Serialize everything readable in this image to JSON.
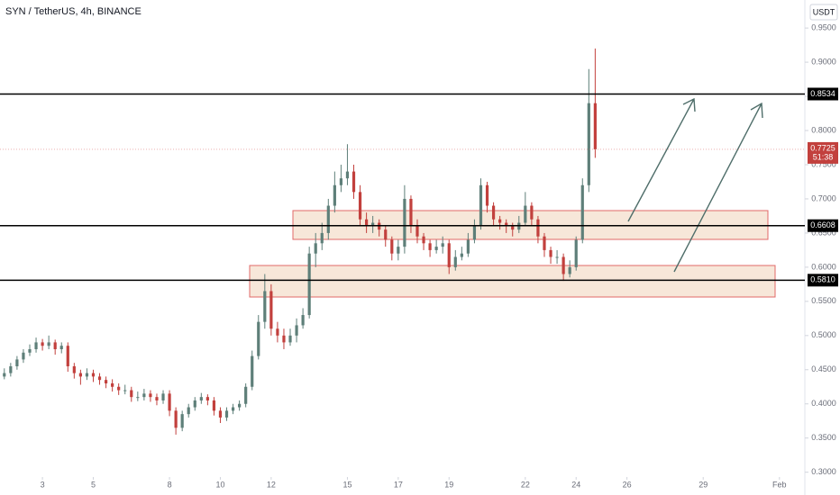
{
  "chart_data": {
    "type": "candlestick",
    "title": "SYN / TetherUS, 4h, BINANCE",
    "currency": "USDT",
    "up_color": "#5e7f79",
    "down_color": "#c2403d",
    "x": [
      1.5,
      1.75,
      2,
      2.25,
      2.5,
      2.75,
      3,
      3.25,
      3.5,
      3.75,
      4,
      4.25,
      4.5,
      4.75,
      5,
      5.25,
      5.5,
      5.75,
      6,
      6.25,
      6.5,
      6.75,
      7,
      7.25,
      7.5,
      7.75,
      8,
      8.25,
      8.5,
      8.75,
      9,
      9.25,
      9.5,
      9.75,
      10,
      10.25,
      10.5,
      10.75,
      11,
      11.25,
      11.5,
      11.75,
      12,
      12.25,
      12.5,
      12.75,
      13,
      13.25,
      13.5,
      13.75,
      14,
      14.25,
      14.5,
      14.75,
      15,
      15.25,
      15.5,
      15.75,
      16,
      16.25,
      16.5,
      16.75,
      17,
      17.25,
      17.5,
      17.75,
      18,
      18.25,
      18.5,
      18.75,
      19,
      19.25,
      19.5,
      19.75,
      20,
      20.25,
      20.5,
      20.75,
      21,
      21.25,
      21.5,
      21.75,
      22,
      22.25,
      22.5,
      22.75,
      23,
      23.25,
      23.5,
      23.75,
      24,
      24.25,
      24.5,
      24.75
    ],
    "candles": [
      [
        0.44,
        0.452,
        0.436,
        0.445
      ],
      [
        0.445,
        0.46,
        0.44,
        0.455
      ],
      [
        0.455,
        0.47,
        0.45,
        0.465
      ],
      [
        0.465,
        0.48,
        0.46,
        0.475
      ],
      [
        0.475,
        0.487,
        0.47,
        0.48
      ],
      [
        0.48,
        0.497,
        0.475,
        0.49
      ],
      [
        0.49,
        0.495,
        0.478,
        0.485
      ],
      [
        0.485,
        0.5,
        0.48,
        0.49
      ],
      [
        0.49,
        0.494,
        0.472,
        0.48
      ],
      [
        0.48,
        0.49,
        0.474,
        0.485
      ],
      [
        0.485,
        0.49,
        0.447,
        0.455
      ],
      [
        0.455,
        0.46,
        0.437,
        0.445
      ],
      [
        0.445,
        0.45,
        0.428,
        0.44
      ],
      [
        0.44,
        0.452,
        0.435,
        0.445
      ],
      [
        0.445,
        0.45,
        0.432,
        0.44
      ],
      [
        0.44,
        0.445,
        0.428,
        0.435
      ],
      [
        0.435,
        0.44,
        0.423,
        0.43
      ],
      [
        0.43,
        0.436,
        0.418,
        0.425
      ],
      [
        0.425,
        0.43,
        0.413,
        0.42
      ],
      [
        0.42,
        0.428,
        0.414,
        0.42
      ],
      [
        0.42,
        0.425,
        0.403,
        0.41
      ],
      [
        0.41,
        0.418,
        0.404,
        0.41
      ],
      [
        0.41,
        0.422,
        0.405,
        0.415
      ],
      [
        0.415,
        0.42,
        0.403,
        0.41
      ],
      [
        0.41,
        0.415,
        0.398,
        0.405
      ],
      [
        0.405,
        0.42,
        0.4,
        0.415
      ],
      [
        0.415,
        0.42,
        0.382,
        0.39
      ],
      [
        0.39,
        0.395,
        0.355,
        0.365
      ],
      [
        0.365,
        0.39,
        0.36,
        0.385
      ],
      [
        0.385,
        0.4,
        0.38,
        0.395
      ],
      [
        0.395,
        0.41,
        0.39,
        0.405
      ],
      [
        0.405,
        0.416,
        0.4,
        0.41
      ],
      [
        0.41,
        0.414,
        0.398,
        0.405
      ],
      [
        0.405,
        0.41,
        0.383,
        0.39
      ],
      [
        0.39,
        0.395,
        0.372,
        0.38
      ],
      [
        0.38,
        0.395,
        0.375,
        0.39
      ],
      [
        0.39,
        0.4,
        0.385,
        0.395
      ],
      [
        0.395,
        0.405,
        0.39,
        0.4
      ],
      [
        0.4,
        0.43,
        0.395,
        0.425
      ],
      [
        0.425,
        0.478,
        0.42,
        0.47
      ],
      [
        0.47,
        0.53,
        0.465,
        0.52
      ],
      [
        0.52,
        0.59,
        0.51,
        0.565
      ],
      [
        0.565,
        0.575,
        0.5,
        0.51
      ],
      [
        0.51,
        0.52,
        0.49,
        0.5
      ],
      [
        0.5,
        0.51,
        0.48,
        0.49
      ],
      [
        0.49,
        0.51,
        0.485,
        0.5
      ],
      [
        0.5,
        0.525,
        0.49,
        0.515
      ],
      [
        0.515,
        0.54,
        0.51,
        0.53
      ],
      [
        0.53,
        0.63,
        0.525,
        0.62
      ],
      [
        0.62,
        0.65,
        0.6,
        0.635
      ],
      [
        0.635,
        0.665,
        0.625,
        0.65
      ],
      [
        0.65,
        0.7,
        0.64,
        0.69
      ],
      [
        0.69,
        0.74,
        0.68,
        0.72
      ],
      [
        0.72,
        0.75,
        0.71,
        0.73
      ],
      [
        0.73,
        0.78,
        0.72,
        0.74
      ],
      [
        0.74,
        0.75,
        0.7,
        0.71
      ],
      [
        0.71,
        0.72,
        0.66,
        0.67
      ],
      [
        0.67,
        0.68,
        0.65,
        0.66
      ],
      [
        0.66,
        0.675,
        0.65,
        0.665
      ],
      [
        0.665,
        0.67,
        0.645,
        0.655
      ],
      [
        0.655,
        0.66,
        0.63,
        0.64
      ],
      [
        0.64,
        0.645,
        0.61,
        0.62
      ],
      [
        0.62,
        0.64,
        0.61,
        0.63
      ],
      [
        0.63,
        0.72,
        0.62,
        0.7
      ],
      [
        0.7,
        0.705,
        0.65,
        0.66
      ],
      [
        0.66,
        0.67,
        0.635,
        0.645
      ],
      [
        0.645,
        0.65,
        0.625,
        0.635
      ],
      [
        0.635,
        0.64,
        0.615,
        0.625
      ],
      [
        0.625,
        0.64,
        0.62,
        0.63
      ],
      [
        0.63,
        0.645,
        0.62,
        0.635
      ],
      [
        0.635,
        0.64,
        0.59,
        0.6
      ],
      [
        0.6,
        0.625,
        0.595,
        0.615
      ],
      [
        0.615,
        0.63,
        0.61,
        0.62
      ],
      [
        0.62,
        0.65,
        0.615,
        0.64
      ],
      [
        0.64,
        0.67,
        0.635,
        0.66
      ],
      [
        0.66,
        0.73,
        0.655,
        0.72
      ],
      [
        0.72,
        0.725,
        0.68,
        0.69
      ],
      [
        0.69,
        0.695,
        0.66,
        0.67
      ],
      [
        0.67,
        0.675,
        0.655,
        0.665
      ],
      [
        0.665,
        0.67,
        0.65,
        0.66
      ],
      [
        0.66,
        0.665,
        0.645,
        0.655
      ],
      [
        0.655,
        0.675,
        0.65,
        0.665
      ],
      [
        0.665,
        0.71,
        0.66,
        0.69
      ],
      [
        0.69,
        0.695,
        0.66,
        0.67
      ],
      [
        0.67,
        0.675,
        0.635,
        0.645
      ],
      [
        0.645,
        0.65,
        0.615,
        0.625
      ],
      [
        0.625,
        0.63,
        0.605,
        0.615
      ],
      [
        0.615,
        0.625,
        0.605,
        0.615
      ],
      [
        0.615,
        0.62,
        0.58,
        0.59
      ],
      [
        0.59,
        0.61,
        0.585,
        0.6
      ],
      [
        0.6,
        0.645,
        0.595,
        0.64
      ],
      [
        0.64,
        0.73,
        0.635,
        0.72
      ],
      [
        0.72,
        0.89,
        0.71,
        0.84
      ],
      [
        0.84,
        0.92,
        0.76,
        0.7725
      ]
    ],
    "xlim": [
      1.33,
      33
    ],
    "xticks": [
      3,
      5,
      8,
      10,
      12,
      15,
      17,
      19,
      22,
      24,
      26,
      29,
      {
        "value": 32,
        "label": "Feb"
      }
    ],
    "ylim": [
      0.293,
      0.991
    ],
    "yticks": [
      {
        "value": 0.95,
        "label": "0.9500"
      },
      {
        "value": 0.9,
        "label": "0.9000"
      },
      {
        "value": 0.85,
        "label": "0.8500"
      },
      {
        "value": 0.8,
        "label": "0.8000"
      },
      {
        "value": 0.75,
        "label": "0.7500"
      },
      {
        "value": 0.7,
        "label": "0.7000"
      },
      {
        "value": 0.65,
        "label": "0.6500"
      },
      {
        "value": 0.6,
        "label": "0.6000"
      },
      {
        "value": 0.55,
        "label": "0.5500"
      },
      {
        "value": 0.5,
        "label": "0.5000"
      },
      {
        "value": 0.45,
        "label": "0.4500"
      },
      {
        "value": 0.4,
        "label": "0.4000"
      },
      {
        "value": 0.35,
        "label": "0.3500"
      },
      {
        "value": 0.3,
        "label": "0.3000"
      }
    ],
    "levels": [
      0.8534,
      0.6608,
      {
        "value": 0.581,
        "label": "0.5810"
      }
    ],
    "last_price": 0.7725,
    "countdown": "51:38"
  }
}
